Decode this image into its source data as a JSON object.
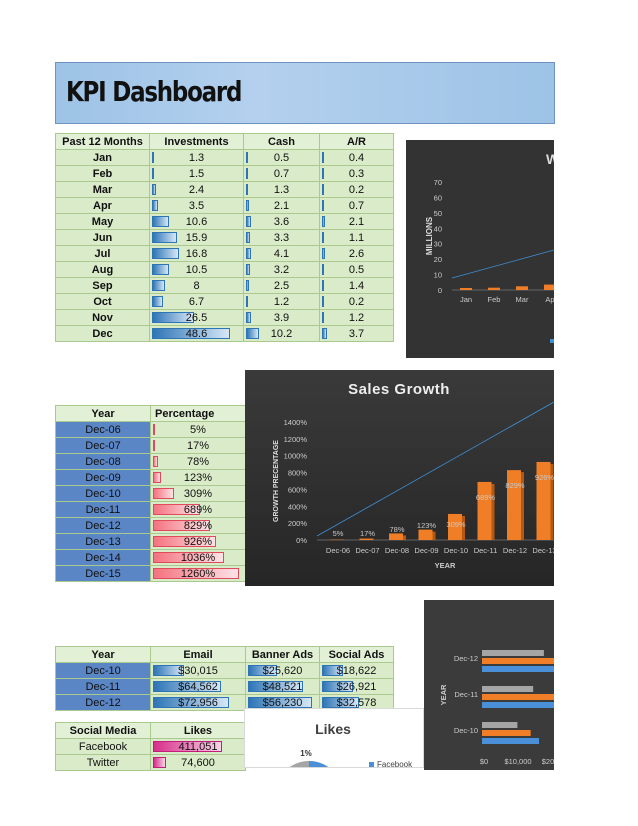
{
  "title": "KPI Dashboard",
  "months_table": {
    "headers": [
      "Past 12 Months",
      "Investments",
      "Cash",
      "A/R"
    ],
    "rows": [
      {
        "month": "Jan",
        "investments": "1.3",
        "cash": "0.5",
        "ar": "0.4",
        "inv_v": 1.3,
        "cash_v": 0.5,
        "ar_v": 0.4
      },
      {
        "month": "Feb",
        "investments": "1.5",
        "cash": "0.7",
        "ar": "0.3",
        "inv_v": 1.5,
        "cash_v": 0.7,
        "ar_v": 0.3
      },
      {
        "month": "Mar",
        "investments": "2.4",
        "cash": "1.3",
        "ar": "0.2",
        "inv_v": 2.4,
        "cash_v": 1.3,
        "ar_v": 0.2
      },
      {
        "month": "Apr",
        "investments": "3.5",
        "cash": "2.1",
        "ar": "0.7",
        "inv_v": 3.5,
        "cash_v": 2.1,
        "ar_v": 0.7
      },
      {
        "month": "May",
        "investments": "10.6",
        "cash": "3.6",
        "ar": "2.1",
        "inv_v": 10.6,
        "cash_v": 3.6,
        "ar_v": 2.1
      },
      {
        "month": "Jun",
        "investments": "15.9",
        "cash": "3.3",
        "ar": "1.1",
        "inv_v": 15.9,
        "cash_v": 3.3,
        "ar_v": 1.1
      },
      {
        "month": "Jul",
        "investments": "16.8",
        "cash": "4.1",
        "ar": "2.6",
        "inv_v": 16.8,
        "cash_v": 4.1,
        "ar_v": 2.6
      },
      {
        "month": "Aug",
        "investments": "10.5",
        "cash": "3.2",
        "ar": "0.5",
        "inv_v": 10.5,
        "cash_v": 3.2,
        "ar_v": 0.5
      },
      {
        "month": "Sep",
        "investments": "8",
        "cash": "2.5",
        "ar": "1.4",
        "inv_v": 8,
        "cash_v": 2.5,
        "ar_v": 1.4
      },
      {
        "month": "Oct",
        "investments": "6.7",
        "cash": "1.2",
        "ar": "0.2",
        "inv_v": 6.7,
        "cash_v": 1.2,
        "ar_v": 0.2
      },
      {
        "month": "Nov",
        "investments": "26.5",
        "cash": "3.9",
        "ar": "1.2",
        "inv_v": 26.5,
        "cash_v": 3.9,
        "ar_v": 1.2
      },
      {
        "month": "Dec",
        "investments": "48.6",
        "cash": "10.2",
        "ar": "3.7",
        "inv_v": 48.6,
        "cash_v": 10.2,
        "ar_v": 3.7
      }
    ]
  },
  "growth_table": {
    "headers": [
      "Year",
      "Percentage"
    ],
    "rows": [
      {
        "year": "Dec-06",
        "pct": "5%",
        "v": 5
      },
      {
        "year": "Dec-07",
        "pct": "17%",
        "v": 17
      },
      {
        "year": "Dec-08",
        "pct": "78%",
        "v": 78
      },
      {
        "year": "Dec-09",
        "pct": "123%",
        "v": 123
      },
      {
        "year": "Dec-10",
        "pct": "309%",
        "v": 309
      },
      {
        "year": "Dec-11",
        "pct": "689%",
        "v": 689
      },
      {
        "year": "Dec-12",
        "pct": "829%",
        "v": 829
      },
      {
        "year": "Dec-13",
        "pct": "926%",
        "v": 926
      },
      {
        "year": "Dec-14",
        "pct": "1036%",
        "v": 1036
      },
      {
        "year": "Dec-15",
        "pct": "1260%",
        "v": 1260
      }
    ]
  },
  "marketing_table": {
    "headers": [
      "Year",
      "Email",
      "Banner Ads",
      "Social Ads"
    ],
    "rows": [
      {
        "year": "Dec-10",
        "email": "$30,015",
        "banner": "$25,620",
        "social": "$18,622",
        "email_v": 30015,
        "banner_v": 25620,
        "social_v": 18622
      },
      {
        "year": "Dec-11",
        "email": "$64,562",
        "banner": "$48,521",
        "social": "$26,921",
        "email_v": 64562,
        "banner_v": 48521,
        "social_v": 26921
      },
      {
        "year": "Dec-12",
        "email": "$72,956",
        "banner": "$56,230",
        "social": "$32,578",
        "email_v": 72956,
        "banner_v": 56230,
        "social_v": 32578
      }
    ]
  },
  "social_table": {
    "headers": [
      "Social Media",
      "Likes"
    ],
    "rows": [
      {
        "name": "Facebook",
        "likes": "411,051",
        "v": 411051
      },
      {
        "name": "Twitter",
        "likes": "74,600",
        "v": 74600
      }
    ]
  },
  "chart_data": [
    {
      "type": "bar",
      "title": "W",
      "ylabel": "MILLIONS",
      "categories": [
        "Jan",
        "Feb",
        "Mar",
        "Ap"
      ],
      "yticks": [
        "0",
        "10",
        "20",
        "30",
        "40",
        "50",
        "60",
        "70"
      ],
      "ylim": [
        0,
        70
      ],
      "series": [
        {
          "values": [
            1.3,
            1.5,
            2.4,
            3.5
          ]
        }
      ],
      "trendline": true,
      "colors": {
        "bar": "#f07e26",
        "line": "#3f8fd6"
      }
    },
    {
      "type": "bar",
      "title": "Sales Growth",
      "xlabel": "YEAR",
      "ylabel": "GROWTH PRECENTAGE",
      "categories": [
        "Dec-06",
        "Dec-07",
        "Dec-08",
        "Dec-09",
        "Dec-10",
        "Dec-11",
        "Dec-12",
        "Dec-13"
      ],
      "values": [
        5,
        17,
        78,
        123,
        309,
        689,
        829,
        926
      ],
      "data_labels": [
        "5%",
        "17%",
        "78%",
        "123%",
        "309%",
        "689%",
        "829%",
        "926%"
      ],
      "yticks": [
        "0%",
        "200%",
        "400%",
        "600%",
        "800%",
        "1000%",
        "1200%",
        "1400%"
      ],
      "ylim": [
        0,
        1400
      ],
      "trendline": true,
      "colors": {
        "bar": "#f07e26",
        "line": "#3f8fd6"
      }
    },
    {
      "type": "bar",
      "orientation": "horizontal",
      "ylabel": "YEAR",
      "categories": [
        "Dec-10",
        "Dec-11",
        "Dec-12"
      ],
      "xticks": [
        "$0",
        "$10,000",
        "$20"
      ],
      "series": [
        {
          "values": [
            30015,
            64562,
            72956
          ]
        },
        {
          "values": [
            25620,
            48521,
            56230
          ]
        },
        {
          "values": [
            18622,
            26921,
            32578
          ]
        }
      ],
      "colors": {
        "email": "#4a90d9",
        "banner": "#f07e26",
        "social": "#a5a5a5"
      }
    },
    {
      "type": "pie",
      "title": "Likes",
      "categories": [
        "Facebook"
      ],
      "data_labels": [
        "1%"
      ],
      "colors": {
        "facebook": "#4a90d9"
      }
    }
  ]
}
